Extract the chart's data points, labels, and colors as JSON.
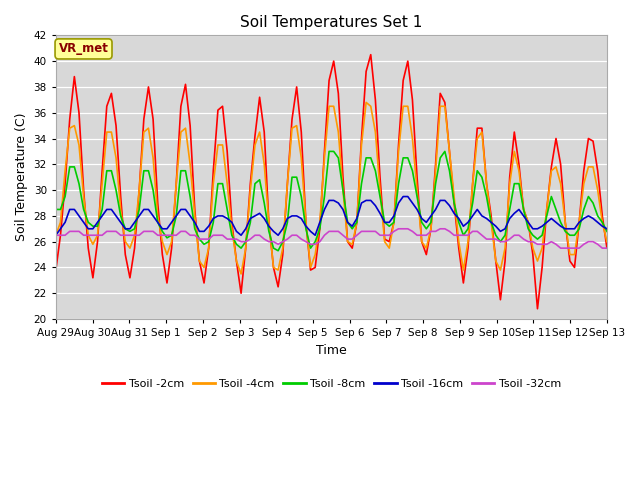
{
  "title": "Soil Temperatures Set 1",
  "xlabel": "Time",
  "ylabel": "Soil Temperature (C)",
  "ylim": [
    20,
    42
  ],
  "yticks": [
    20,
    22,
    24,
    26,
    28,
    30,
    32,
    34,
    36,
    38,
    40,
    42
  ],
  "fig_bg_color": "#ffffff",
  "plot_bg_color": "#d8d8d8",
  "annotation_text": "VR_met",
  "annotation_box_facecolor": "#ffff99",
  "annotation_box_edgecolor": "#999900",
  "annotation_text_color": "#880000",
  "series_colors": {
    "Tsoil -2cm": "#ff0000",
    "Tsoil -4cm": "#ff9900",
    "Tsoil -8cm": "#00cc00",
    "Tsoil -16cm": "#0000cc",
    "Tsoil -32cm": "#cc44cc"
  },
  "x_labels": [
    "Aug 29",
    "Aug 30",
    "Aug 31",
    "Sep 1",
    "Sep 2",
    "Sep 3",
    "Sep 4",
    "Sep 5",
    "Sep 6",
    "Sep 7",
    "Sep 8",
    "Sep 9",
    "Sep 10",
    "Sep 11",
    "Sep 12",
    "Sep 13"
  ],
  "num_days": 15,
  "tsoil_2cm": [
    23.8,
    26.5,
    30.5,
    35.5,
    38.8,
    36.0,
    30.0,
    25.5,
    23.2,
    26.0,
    31.5,
    36.5,
    37.5,
    35.0,
    29.5,
    25.0,
    23.2,
    25.5,
    30.0,
    35.5,
    38.0,
    35.5,
    29.0,
    25.0,
    22.8,
    25.5,
    30.5,
    36.5,
    38.2,
    35.0,
    28.5,
    24.5,
    22.8,
    25.5,
    31.5,
    36.2,
    36.5,
    33.0,
    27.5,
    24.5,
    22.0,
    25.5,
    30.5,
    34.2,
    37.2,
    34.5,
    27.5,
    24.0,
    22.5,
    25.0,
    30.5,
    35.5,
    38.0,
    34.5,
    27.5,
    23.8,
    24.0,
    27.0,
    33.0,
    38.5,
    40.0,
    37.5,
    31.0,
    26.0,
    25.5,
    27.5,
    34.0,
    39.2,
    40.5,
    37.0,
    31.0,
    26.2,
    26.0,
    27.5,
    33.5,
    38.5,
    40.0,
    37.0,
    31.0,
    26.0,
    25.0,
    27.0,
    32.0,
    37.5,
    36.8,
    33.0,
    29.0,
    25.5,
    22.8,
    25.5,
    30.5,
    34.8,
    34.8,
    30.5,
    28.0,
    24.5,
    21.5,
    24.5,
    31.0,
    34.5,
    32.0,
    28.5,
    27.5,
    25.0,
    20.8,
    24.0,
    28.5,
    31.8,
    34.0,
    32.0,
    27.5,
    24.5,
    24.0,
    27.5,
    31.5,
    34.0,
    33.8,
    31.5,
    28.0,
    25.5
  ],
  "tsoil_4cm": [
    26.5,
    27.5,
    31.5,
    34.8,
    35.0,
    33.5,
    29.5,
    26.5,
    25.8,
    26.5,
    30.5,
    34.5,
    34.5,
    32.5,
    28.5,
    26.0,
    25.5,
    26.5,
    30.0,
    34.5,
    34.8,
    32.5,
    28.0,
    26.0,
    25.0,
    26.0,
    30.5,
    34.5,
    34.8,
    32.0,
    28.0,
    24.5,
    24.0,
    25.5,
    30.5,
    33.5,
    33.5,
    30.5,
    27.0,
    24.5,
    23.5,
    25.5,
    30.0,
    33.5,
    34.5,
    32.0,
    27.5,
    24.0,
    23.8,
    25.5,
    30.5,
    34.8,
    35.0,
    32.5,
    27.5,
    24.0,
    25.0,
    27.5,
    32.5,
    36.5,
    36.5,
    34.5,
    30.0,
    26.0,
    25.8,
    27.5,
    33.5,
    36.8,
    36.5,
    34.5,
    30.0,
    26.0,
    25.5,
    27.5,
    33.0,
    36.5,
    36.5,
    34.0,
    30.0,
    26.0,
    25.5,
    27.0,
    31.5,
    36.5,
    36.5,
    33.0,
    29.5,
    26.0,
    23.8,
    26.0,
    30.5,
    34.0,
    34.5,
    30.5,
    27.5,
    24.5,
    23.8,
    25.5,
    30.5,
    33.0,
    31.5,
    28.5,
    27.5,
    25.5,
    24.5,
    25.5,
    28.5,
    31.5,
    31.8,
    30.5,
    27.5,
    25.0,
    25.0,
    27.5,
    30.5,
    31.8,
    31.8,
    30.0,
    27.5,
    26.0
  ],
  "tsoil_8cm": [
    28.5,
    28.5,
    29.5,
    31.8,
    31.8,
    30.5,
    28.5,
    27.5,
    27.2,
    27.2,
    28.5,
    31.5,
    31.5,
    30.0,
    28.0,
    27.0,
    26.8,
    27.0,
    28.5,
    31.5,
    31.5,
    30.0,
    27.5,
    26.8,
    26.3,
    26.5,
    28.0,
    31.5,
    31.5,
    29.5,
    27.0,
    26.2,
    25.8,
    26.0,
    27.5,
    30.5,
    30.5,
    28.5,
    26.5,
    25.8,
    25.5,
    26.0,
    27.5,
    30.5,
    30.8,
    29.0,
    26.8,
    25.5,
    25.3,
    26.0,
    27.5,
    31.0,
    31.0,
    29.5,
    27.0,
    25.5,
    26.0,
    27.0,
    29.5,
    33.0,
    33.0,
    32.5,
    30.0,
    27.5,
    27.0,
    27.5,
    30.5,
    32.5,
    32.5,
    31.5,
    29.5,
    27.5,
    27.2,
    27.5,
    30.5,
    32.5,
    32.5,
    31.5,
    29.5,
    27.5,
    27.0,
    27.5,
    30.5,
    32.5,
    33.0,
    31.5,
    29.0,
    27.5,
    26.5,
    27.0,
    29.0,
    31.5,
    31.0,
    29.5,
    27.5,
    26.5,
    26.0,
    26.5,
    28.5,
    30.5,
    30.5,
    28.5,
    27.0,
    26.5,
    26.2,
    26.5,
    28.0,
    29.5,
    28.5,
    27.5,
    26.8,
    26.5,
    26.5,
    27.0,
    28.5,
    29.5,
    29.0,
    28.0,
    27.5,
    26.8
  ],
  "tsoil_16cm": [
    26.5,
    27.0,
    27.5,
    28.5,
    28.5,
    28.0,
    27.5,
    27.0,
    27.0,
    27.5,
    28.0,
    28.5,
    28.5,
    28.0,
    27.5,
    27.0,
    27.0,
    27.5,
    28.0,
    28.5,
    28.5,
    28.0,
    27.5,
    27.0,
    27.0,
    27.5,
    28.0,
    28.5,
    28.5,
    28.0,
    27.5,
    26.8,
    26.8,
    27.2,
    27.8,
    28.0,
    28.0,
    27.8,
    27.5,
    26.8,
    26.5,
    27.0,
    27.8,
    28.0,
    28.2,
    27.8,
    27.2,
    26.8,
    26.5,
    27.0,
    27.8,
    28.0,
    28.0,
    27.8,
    27.2,
    26.8,
    26.5,
    27.5,
    28.5,
    29.2,
    29.2,
    29.0,
    28.5,
    27.5,
    27.2,
    27.8,
    29.0,
    29.2,
    29.2,
    28.8,
    28.2,
    27.5,
    27.5,
    28.0,
    29.0,
    29.5,
    29.5,
    29.0,
    28.5,
    27.8,
    27.5,
    28.0,
    28.5,
    29.2,
    29.2,
    28.8,
    28.2,
    27.8,
    27.2,
    27.5,
    28.0,
    28.5,
    28.0,
    27.8,
    27.5,
    27.2,
    26.8,
    27.0,
    27.8,
    28.2,
    28.5,
    28.0,
    27.5,
    27.0,
    27.0,
    27.2,
    27.5,
    27.8,
    27.5,
    27.2,
    27.0,
    27.0,
    27.0,
    27.5,
    27.8,
    28.0,
    27.8,
    27.5,
    27.2,
    27.0
  ],
  "tsoil_32cm": [
    26.5,
    26.5,
    26.5,
    26.8,
    26.8,
    26.8,
    26.5,
    26.5,
    26.5,
    26.5,
    26.5,
    26.8,
    26.8,
    26.8,
    26.5,
    26.5,
    26.5,
    26.5,
    26.5,
    26.8,
    26.8,
    26.8,
    26.5,
    26.5,
    26.5,
    26.5,
    26.5,
    26.8,
    26.8,
    26.5,
    26.5,
    26.2,
    26.2,
    26.2,
    26.5,
    26.5,
    26.5,
    26.2,
    26.2,
    26.2,
    26.0,
    26.0,
    26.2,
    26.5,
    26.5,
    26.2,
    26.0,
    26.0,
    25.8,
    26.0,
    26.2,
    26.5,
    26.5,
    26.2,
    26.0,
    25.8,
    25.8,
    26.0,
    26.5,
    26.8,
    26.8,
    26.8,
    26.5,
    26.2,
    26.2,
    26.5,
    26.8,
    26.8,
    26.8,
    26.8,
    26.5,
    26.5,
    26.5,
    26.8,
    27.0,
    27.0,
    27.0,
    26.8,
    26.5,
    26.5,
    26.5,
    26.8,
    26.8,
    27.0,
    27.0,
    26.8,
    26.5,
    26.5,
    26.5,
    26.5,
    26.8,
    26.8,
    26.5,
    26.2,
    26.2,
    26.2,
    26.0,
    26.0,
    26.2,
    26.5,
    26.5,
    26.2,
    26.0,
    26.0,
    25.8,
    25.8,
    25.8,
    26.0,
    25.8,
    25.5,
    25.5,
    25.5,
    25.5,
    25.5,
    25.8,
    26.0,
    26.0,
    25.8,
    25.5,
    25.5
  ]
}
